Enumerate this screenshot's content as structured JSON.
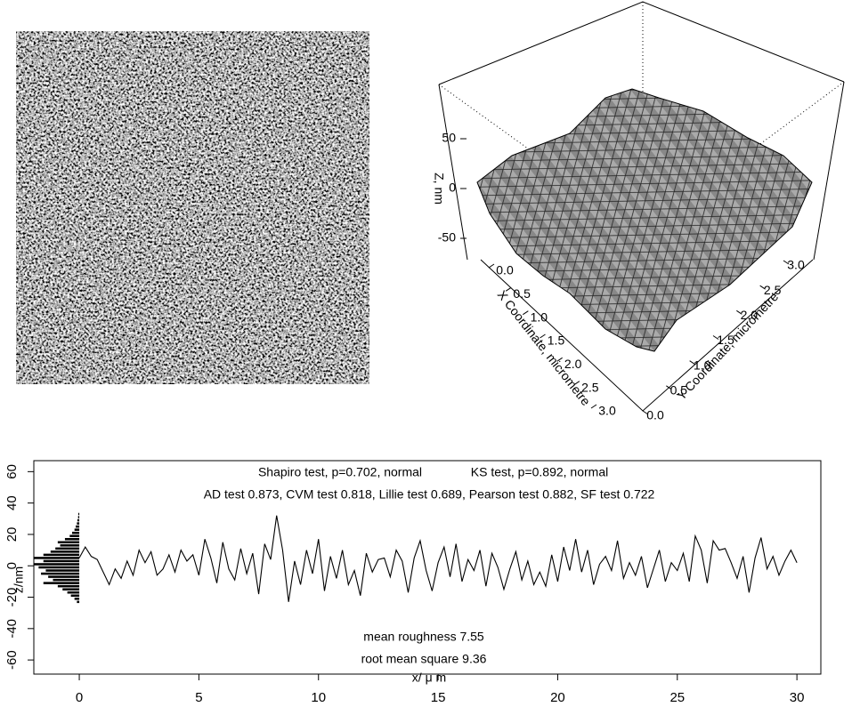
{
  "chart_data": [
    {
      "type": "surface3d",
      "zlabel": "Z, nm",
      "xlabel": "X Coordinate, micrometre",
      "ylabel": "Y Coordinate, micrometre",
      "xlim": [
        0,
        3
      ],
      "ylim": [
        0,
        3
      ],
      "zlim": [
        -75,
        80
      ],
      "xticks": [
        {
          "value": 0,
          "label": "0.0"
        },
        {
          "value": 0.5,
          "label": "0.5"
        },
        {
          "value": 1,
          "label": "1.0"
        },
        {
          "value": 1.5,
          "label": "1.5"
        },
        {
          "value": 2,
          "label": "2.0"
        },
        {
          "value": 2.5,
          "label": "2.5"
        },
        {
          "value": 3,
          "label": "3.0"
        }
      ],
      "yticks": [
        {
          "value": 0,
          "label": "0.0"
        },
        {
          "value": 0.5,
          "label": "0.5"
        },
        {
          "value": 1,
          "label": "1.0"
        },
        {
          "value": 1.5,
          "label": "1.5"
        },
        {
          "value": 2,
          "label": "2.0"
        },
        {
          "value": 2.5,
          "label": "2.5"
        },
        {
          "value": 3,
          "label": "3.0"
        }
      ],
      "zticks": [
        -50,
        0,
        50
      ]
    },
    {
      "type": "line",
      "xlabel": "x/ μ m",
      "ylabel": "z/nm",
      "color": "#000000",
      "annotations": [
        "Shapiro test, p=0.702, normal",
        "KS test, p=0.892, normal",
        "AD test 0.873, CVM test 0.818, Lillie test 0.689, Pearson test 0.882, SF test 0.722",
        "mean roughness  7.55",
        "root mean square  9.36"
      ],
      "xlim": [
        -1.9,
        31
      ],
      "ylim": [
        -69,
        67
      ],
      "xticks": [
        0,
        5,
        10,
        15,
        20,
        25,
        30
      ],
      "yticks": [
        -60,
        -40,
        -20,
        0,
        20,
        40,
        60
      ],
      "x": [
        0,
        0.25,
        0.5,
        0.75,
        1,
        1.25,
        1.5,
        1.75,
        2,
        2.25,
        2.5,
        2.75,
        3,
        3.25,
        3.5,
        3.75,
        4,
        4.25,
        4.5,
        4.75,
        5,
        5.25,
        5.5,
        5.75,
        6,
        6.25,
        6.5,
        6.75,
        7,
        7.25,
        7.5,
        7.75,
        8,
        8.25,
        8.5,
        8.75,
        9,
        9.25,
        9.5,
        9.75,
        10,
        10.25,
        10.5,
        10.75,
        11,
        11.25,
        11.5,
        11.75,
        12,
        12.25,
        12.5,
        12.75,
        13,
        13.25,
        13.5,
        13.75,
        14,
        14.25,
        14.5,
        14.75,
        15,
        15.25,
        15.5,
        15.75,
        16,
        16.25,
        16.5,
        16.75,
        17,
        17.25,
        17.5,
        17.75,
        18,
        18.25,
        18.5,
        18.75,
        19,
        19.25,
        19.5,
        19.75,
        20,
        20.25,
        20.5,
        20.75,
        21,
        21.25,
        21.5,
        21.75,
        22,
        22.25,
        22.5,
        22.75,
        23,
        23.25,
        23.5,
        23.75,
        24,
        24.25,
        24.5,
        24.75,
        25,
        25.25,
        25.5,
        25.75,
        26,
        26.25,
        26.5,
        26.75,
        27,
        27.25,
        27.5,
        27.75,
        28,
        28.25,
        28.5,
        28.75,
        29,
        29.25,
        29.5,
        29.75,
        30
      ],
      "values": [
        5,
        12,
        6,
        4,
        -4,
        -12,
        -2,
        -8,
        3,
        -6,
        10,
        2,
        9,
        -6,
        -2,
        7,
        -4,
        10,
        3,
        7,
        -6,
        17,
        5,
        -11,
        15,
        -2,
        -9,
        11,
        -5,
        8,
        -18,
        14,
        4,
        32,
        10,
        -23,
        3,
        -12,
        10,
        -5,
        17,
        -16,
        6,
        -8,
        10,
        -12,
        -3,
        -19,
        8,
        -4,
        4,
        5,
        -7,
        10,
        3,
        -17,
        5,
        16,
        -3,
        -16,
        2,
        12,
        -7,
        14,
        -10,
        4,
        -3,
        10,
        -13,
        8,
        -1,
        -15,
        -2,
        9,
        -9,
        3,
        -12,
        -4,
        -13,
        7,
        -10,
        12,
        -3,
        17,
        -4,
        10,
        -12,
        1,
        6,
        -3,
        16,
        -8,
        2,
        -6,
        6,
        -14,
        -2,
        10,
        -10,
        2,
        -3,
        8,
        -10,
        19,
        10,
        -11,
        16,
        10,
        11,
        2,
        -8,
        6,
        -17,
        5,
        18,
        -2,
        6,
        -6,
        3,
        10,
        2
      ],
      "histogram": {
        "bins": [
          -24,
          -22,
          -20,
          -18,
          -16,
          -14,
          -12,
          -10,
          -8,
          -6,
          -4,
          -2,
          0,
          2,
          4,
          6,
          8,
          10,
          12,
          14,
          16,
          18,
          20,
          22,
          24,
          26,
          28,
          30,
          32,
          34
        ],
        "values": [
          -0.1,
          -0.2,
          -0.35,
          -0.5,
          -0.7,
          -0.9,
          -1.5,
          -1.1,
          -1.3,
          -1.6,
          -1.4,
          -1.7,
          -1.9,
          -1.5,
          -1.9,
          -1.5,
          -1.2,
          -1.0,
          -0.8,
          -0.9,
          -0.6,
          -0.4,
          -0.3,
          -0.2,
          -0.15,
          -0.1,
          -0.08,
          -0.05,
          -0.04
        ]
      }
    }
  ]
}
